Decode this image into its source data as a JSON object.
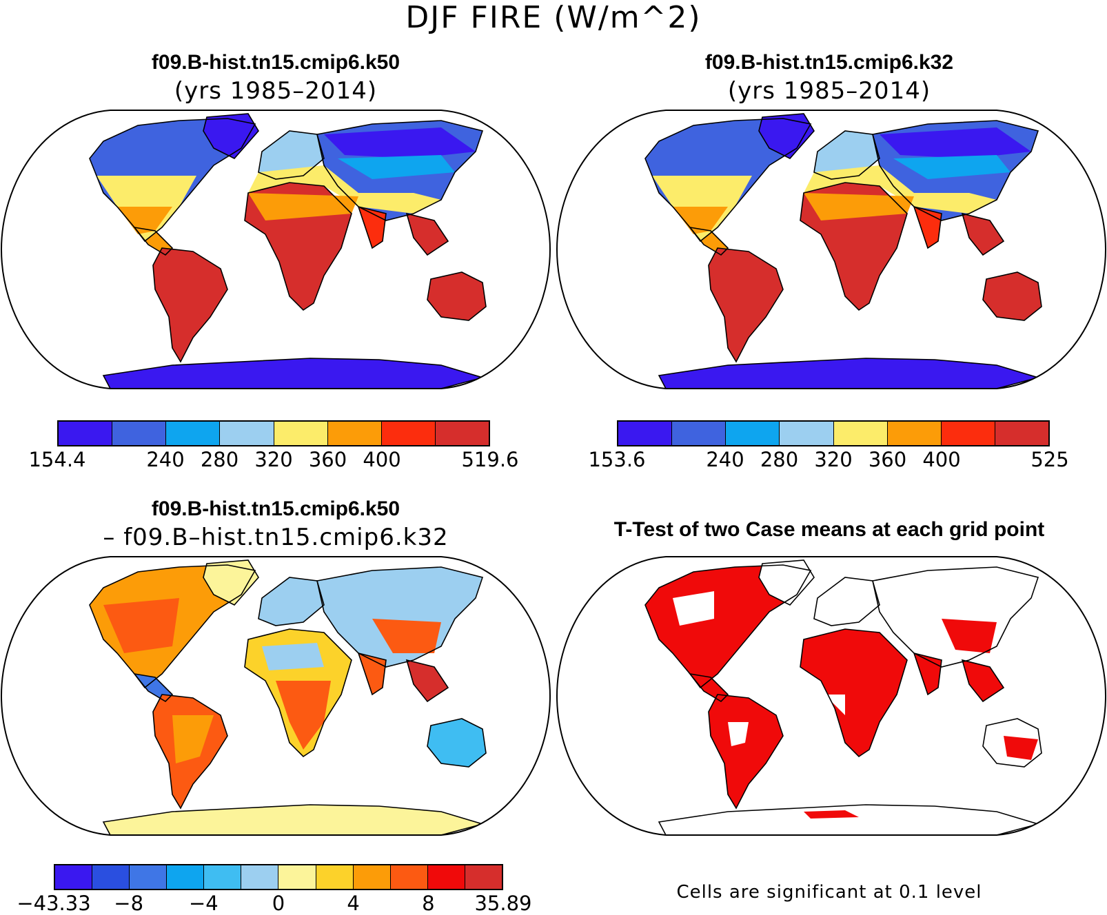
{
  "title": "DJF FIRE (W/m^2)",
  "panels": [
    {
      "title": "f09.B-hist.tn15.cmip6.k50",
      "subtitle": "(yrs 1985–2014)",
      "colorbar": {
        "colors": [
          "#3a18f0",
          "#3f63df",
          "#0ea5ef",
          "#9ccff0",
          "#fcec6a",
          "#fc9c08",
          "#fc2d0d",
          "#d62e2c"
        ],
        "ticks": [
          "154.4",
          "240",
          "280",
          "320",
          "360",
          "400",
          "519.6"
        ],
        "tick_index": [
          0,
          2,
          3,
          4,
          5,
          6,
          8
        ]
      }
    },
    {
      "title": "f09.B-hist.tn15.cmip6.k32",
      "subtitle": "(yrs 1985–2014)",
      "colorbar": {
        "colors": [
          "#3a18f0",
          "#3f63df",
          "#0ea5ef",
          "#9ccff0",
          "#fcec6a",
          "#fc9c08",
          "#fc2d0d",
          "#d62e2c"
        ],
        "ticks": [
          "153.6",
          "240",
          "280",
          "320",
          "360",
          "400",
          "525"
        ],
        "tick_index": [
          0,
          2,
          3,
          4,
          5,
          6,
          8
        ]
      }
    },
    {
      "title": "f09.B-hist.tn15.cmip6.k50",
      "subtitle": "– f09.B–hist.tn15.cmip6.k32",
      "colorbar": {
        "colors": [
          "#3a18f0",
          "#2a4fe0",
          "#3f76e6",
          "#0ea5ef",
          "#3fbdf2",
          "#9ccff0",
          "#fcf49a",
          "#fcd22a",
          "#fc9c08",
          "#fc5a12",
          "#f00a0a",
          "#d62e2c"
        ],
        "ticks": [
          "−43.33",
          "−8",
          "−4",
          "0",
          "4",
          "8",
          "35.89"
        ],
        "tick_index": [
          0,
          2,
          4,
          6,
          8,
          10,
          12
        ]
      }
    },
    {
      "title": "T-Test of two Case means at each grid point",
      "note": "Cells are significant at 0.1 level"
    }
  ]
}
